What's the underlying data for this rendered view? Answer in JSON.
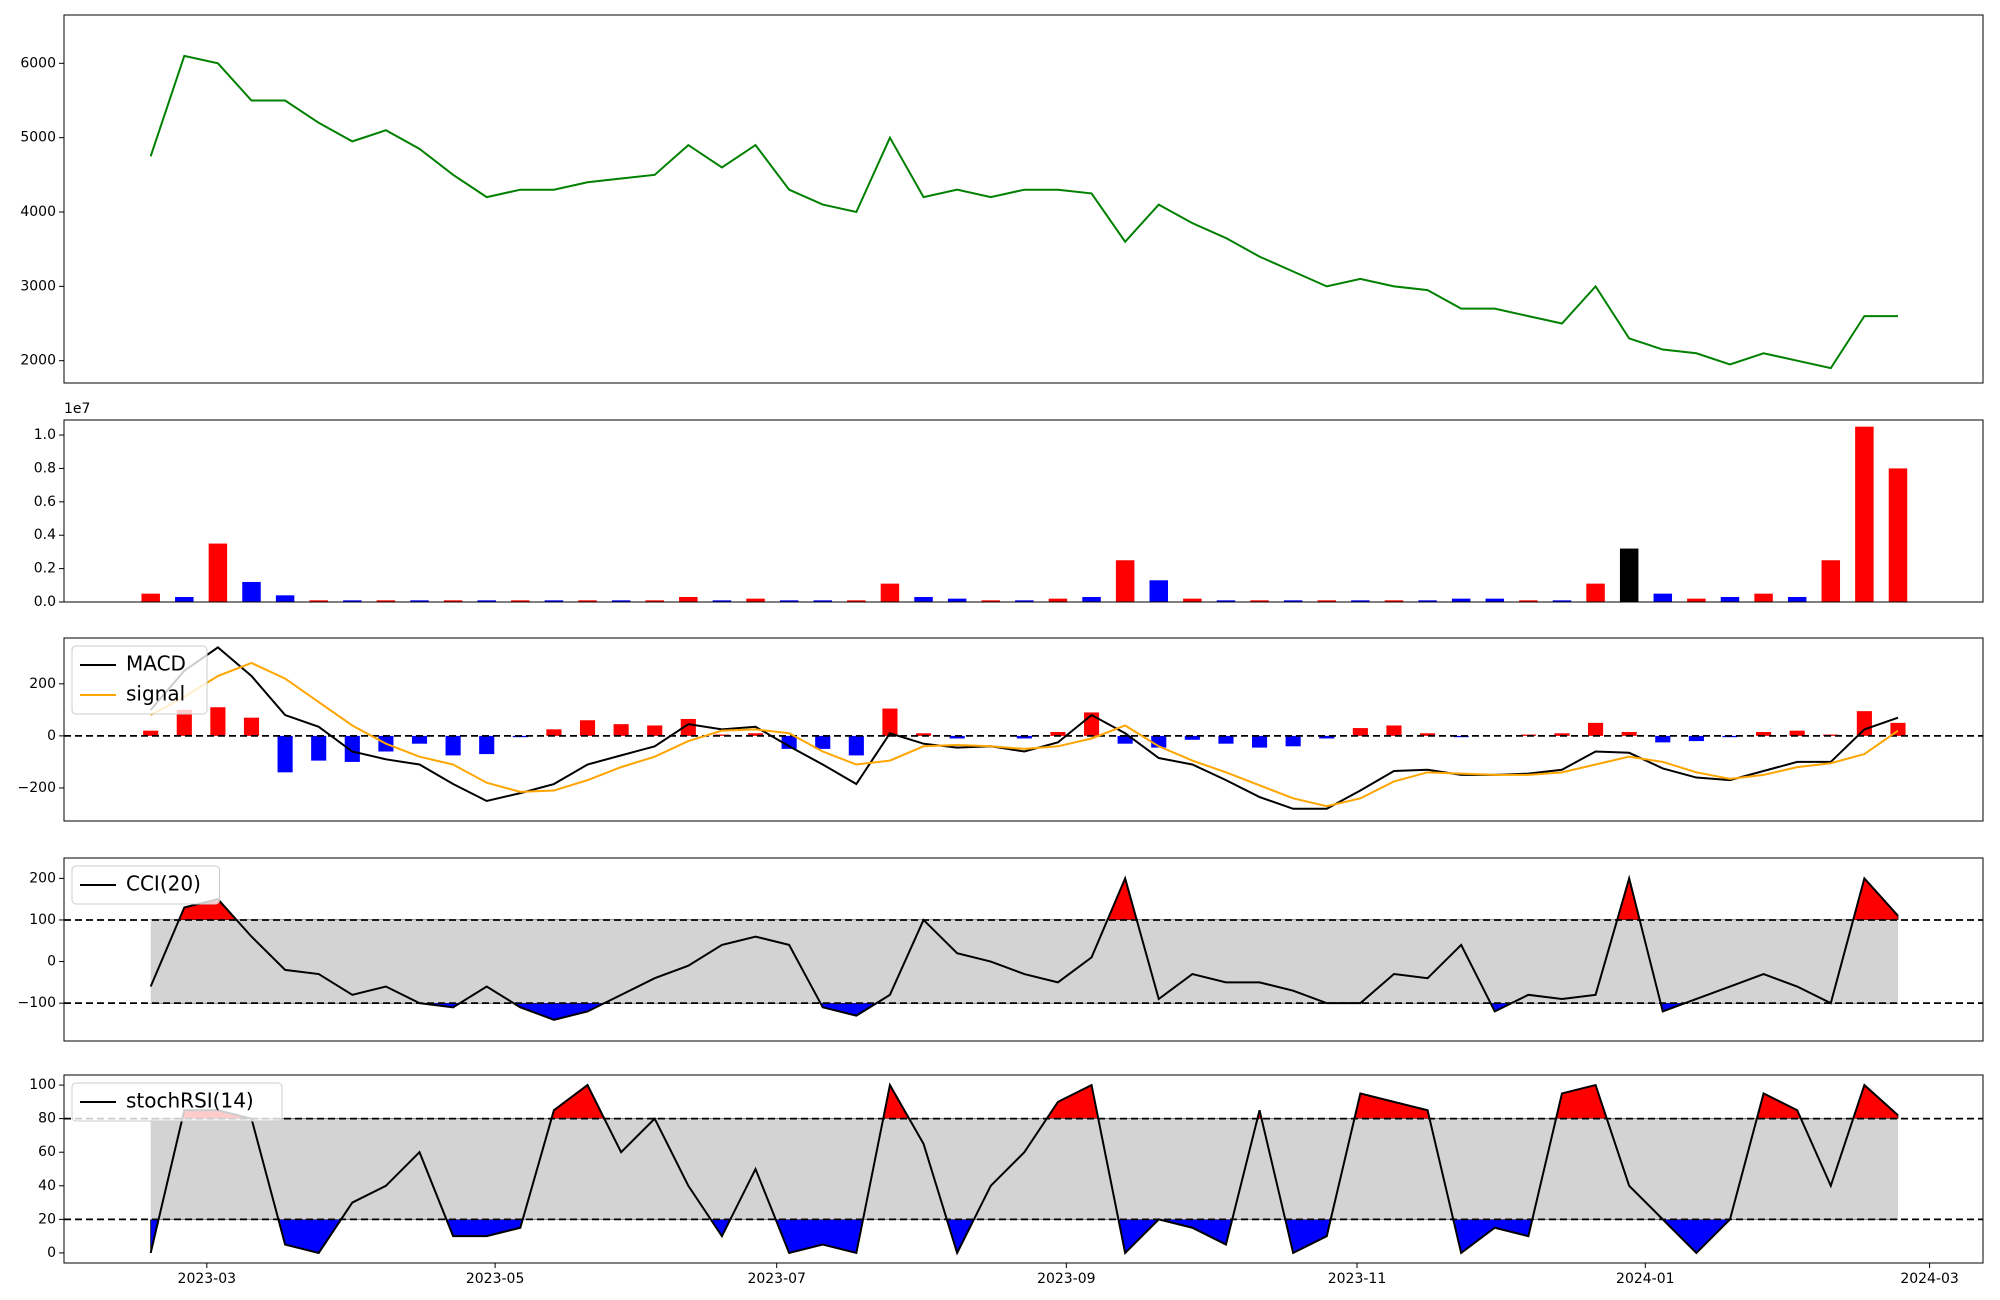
{
  "chart_data": [
    {
      "type": "line",
      "xlim": [
        -2.58,
        54.53
      ],
      "ylim": [
        1700,
        6650
      ],
      "yticks": [
        2000,
        3000,
        4000,
        5000,
        6000
      ],
      "series": [
        {
          "name": null,
          "color": "#008000",
          "values": [
            4750,
            6100,
            6000,
            5500,
            5500,
            5200,
            4950,
            5100,
            4850,
            4500,
            4200,
            4300,
            4300,
            4400,
            4450,
            4500,
            4900,
            4600,
            4900,
            4300,
            4100,
            4000,
            5000,
            4200,
            4300,
            4200,
            4300,
            4300,
            4250,
            3600,
            4100,
            3850,
            3650,
            3400,
            3200,
            3000,
            3100,
            3000,
            2950,
            2700,
            2700,
            2600,
            2500,
            3000,
            2300,
            2150,
            2100,
            1950,
            2100,
            2000,
            1900,
            2600,
            2600
          ]
        }
      ]
    },
    {
      "type": "bar",
      "xlim": [
        -2.58,
        54.53
      ],
      "ylim": [
        0,
        1.09
      ],
      "offset_label": "1e7",
      "yticks": [
        {
          "value": 0,
          "label": "0.0"
        },
        0.2,
        0.4,
        0.6,
        0.8,
        {
          "value": 1,
          "label": "1.0"
        }
      ],
      "values": [
        0.05,
        0.03,
        0.35,
        0.12,
        0.04,
        0.01,
        0.01,
        0.01,
        0.01,
        0.01,
        0.01,
        0.01,
        0.01,
        0.01,
        0.01,
        0.01,
        0.03,
        0.01,
        0.02,
        0.01,
        0.01,
        0.01,
        0.11,
        0.03,
        0.02,
        0.01,
        0.01,
        0.02,
        0.03,
        0.25,
        0.13,
        0.02,
        0.01,
        0.01,
        0.01,
        0.01,
        0.01,
        0.01,
        0.01,
        0.02,
        0.02,
        0.01,
        0.01,
        0.11,
        0.32,
        0.05,
        0.02,
        0.03,
        0.05,
        0.03,
        0.25,
        1.05,
        0.8
      ],
      "colors": [
        "#ff0000",
        "#0000ff",
        "#ff0000",
        "#0000ff",
        "#0000ff",
        "#ff0000",
        "#0000ff",
        "#ff0000",
        "#0000ff",
        "#ff0000",
        "#0000ff",
        "#ff0000",
        "#0000ff",
        "#ff0000",
        "#0000ff",
        "#ff0000",
        "#ff0000",
        "#0000ff",
        "#ff0000",
        "#0000ff",
        "#0000ff",
        "#ff0000",
        "#ff0000",
        "#0000ff",
        "#0000ff",
        "#ff0000",
        "#0000ff",
        "#ff0000",
        "#0000ff",
        "#ff0000",
        "#0000ff",
        "#ff0000",
        "#0000ff",
        "#ff0000",
        "#0000ff",
        "#ff0000",
        "#0000ff",
        "#ff0000",
        "#0000ff",
        "#0000ff",
        "#0000ff",
        "#ff0000",
        "#0000ff",
        "#ff0000",
        "#000000",
        "#0000ff",
        "#ff0000",
        "#0000ff",
        "#ff0000",
        "#0000ff",
        "#ff0000",
        "#ff0000",
        "#ff0000"
      ]
    },
    {
      "type": "line",
      "xlim": [
        -2.58,
        54.53
      ],
      "ylim": [
        -327,
        376
      ],
      "legend": "upper left",
      "yticks": [
        {
          "value": -200,
          "label": "−200"
        },
        0,
        200
      ],
      "ref_lines": [
        0
      ],
      "histogram": {
        "pos_color": "#ff0000",
        "neg_color": "#0000ff",
        "values": [
          20,
          100,
          110,
          70,
          -140,
          -95,
          -100,
          -60,
          -30,
          -75,
          -70,
          -5,
          25,
          60,
          45,
          40,
          65,
          5,
          10,
          -50,
          -50,
          -75,
          105,
          10,
          -10,
          0,
          -10,
          15,
          90,
          -30,
          -45,
          -15,
          -30,
          -45,
          -40,
          -10,
          30,
          40,
          10,
          -5,
          0,
          5,
          10,
          50,
          15,
          -25,
          -20,
          -5,
          15,
          20,
          5,
          95,
          50
        ]
      },
      "series": [
        {
          "name": "MACD",
          "color": "#000000",
          "values": [
            100,
            250,
            340,
            230,
            80,
            35,
            -60,
            -90,
            -110,
            -185,
            -250,
            -220,
            -185,
            -110,
            -75,
            -40,
            45,
            25,
            35,
            -40,
            -110,
            -185,
            10,
            -30,
            -45,
            -40,
            -60,
            -25,
            80,
            10,
            -85,
            -110,
            -170,
            -235,
            -280,
            -280,
            -210,
            -135,
            -130,
            -150,
            -150,
            -145,
            -130,
            -60,
            -65,
            -125,
            -160,
            -170,
            -135,
            -100,
            -100,
            25,
            70
          ]
        },
        {
          "name": "signal",
          "color": "#ffa500",
          "values": [
            80,
            150,
            230,
            280,
            220,
            130,
            40,
            -30,
            -80,
            -110,
            -180,
            -215,
            -210,
            -170,
            -120,
            -80,
            -20,
            20,
            25,
            10,
            -60,
            -110,
            -95,
            -40,
            -35,
            -40,
            -50,
            -40,
            -10,
            40,
            -40,
            -95,
            -140,
            -190,
            -240,
            -270,
            -240,
            -175,
            -140,
            -145,
            -150,
            -150,
            -140,
            -110,
            -80,
            -100,
            -140,
            -165,
            -150,
            -120,
            -105,
            -70,
            20
          ]
        }
      ]
    },
    {
      "type": "line",
      "xlim": [
        -2.58,
        54.53
      ],
      "ylim": [
        -191,
        249
      ],
      "legend": "upper left",
      "yticks": [
        {
          "value": -100,
          "label": "−100"
        },
        0,
        100,
        200
      ],
      "ref_lines": [
        100,
        -100
      ],
      "bands": {
        "upper": 100,
        "lower": -100,
        "upper_color": "#ff0000",
        "lower_color": "#0000ff",
        "band_color": "#d3d3d3"
      },
      "series": [
        {
          "name": "CCI(20)",
          "color": "#000000",
          "values": [
            -60,
            130,
            150,
            60,
            -20,
            -30,
            -80,
            -60,
            -100,
            -110,
            -60,
            -110,
            -140,
            -120,
            -80,
            -40,
            -10,
            40,
            60,
            40,
            -110,
            -130,
            -80,
            100,
            20,
            0,
            -30,
            -50,
            10,
            200,
            -90,
            -30,
            -50,
            -50,
            -70,
            -100,
            -100,
            -30,
            -40,
            40,
            -120,
            -80,
            -90,
            -80,
            200,
            -120,
            -90,
            -60,
            -30,
            -60,
            -100,
            200,
            110
          ]
        }
      ]
    },
    {
      "type": "line",
      "xlim": [
        -2.58,
        54.53
      ],
      "ylim": [
        -6,
        106
      ],
      "legend": "upper left",
      "yticks": [
        0,
        20,
        40,
        60,
        80,
        100
      ],
      "ref_lines": [
        80,
        20
      ],
      "bands": {
        "upper": 80,
        "lower": 20,
        "upper_color": "#ff0000",
        "lower_color": "#0000ff",
        "band_color": "#d3d3d3"
      },
      "xticks": [
        {
          "value": 1.67,
          "label": "2023-03"
        },
        {
          "value": 10.25,
          "label": "2023-05"
        },
        {
          "value": 18.63,
          "label": "2023-07"
        },
        {
          "value": 27.25,
          "label": "2023-09"
        },
        {
          "value": 35.9,
          "label": "2023-11"
        },
        {
          "value": 44.48,
          "label": "2024-01"
        },
        {
          "value": 52.94,
          "label": "2024-03"
        }
      ],
      "series": [
        {
          "name": "stochRSI(14)",
          "color": "#000000",
          "values": [
            0,
            85,
            85,
            80,
            5,
            0,
            30,
            40,
            60,
            10,
            10,
            15,
            85,
            100,
            60,
            80,
            40,
            10,
            50,
            0,
            5,
            0,
            100,
            65,
            0,
            40,
            60,
            90,
            100,
            0,
            20,
            15,
            5,
            85,
            0,
            10,
            95,
            90,
            85,
            0,
            15,
            10,
            95,
            100,
            40,
            20,
            0,
            20,
            95,
            85,
            40,
            100,
            82
          ]
        }
      ]
    }
  ]
}
